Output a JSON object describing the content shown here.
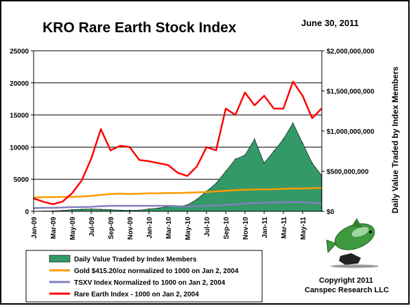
{
  "chart_data": {
    "type": "line",
    "title": "KRO Rare Earth Stock Index",
    "date": "June 30, 2011",
    "ylabel_right": "Daily Value Traded by Index Members",
    "ylim_left": [
      0,
      25000
    ],
    "ylim_right": [
      0,
      2000000000
    ],
    "y_ticks_left": [
      "0",
      "5000",
      "10000",
      "15000",
      "20000",
      "25000"
    ],
    "y_ticks_right": [
      "$0",
      "$500,000,000",
      "$1,000,000,000",
      "$1,500,000,000",
      "$2,000,000,000"
    ],
    "x_ticks": [
      "Jan-09",
      "Mar-09",
      "May-09",
      "Jul-09",
      "Sep-09",
      "Nov-09",
      "Jan-10",
      "Mar-10",
      "May-10",
      "Jul-10",
      "Sep-10",
      "Nov-10",
      "Jan-11",
      "Mar-11",
      "May-11"
    ],
    "grid": true,
    "legend_position": "bottom-left",
    "x_months": [
      0,
      1,
      2,
      3,
      4,
      5,
      6,
      7,
      8,
      9,
      10,
      11,
      12,
      13,
      14,
      15,
      16,
      17,
      18,
      19,
      20,
      21,
      22,
      23,
      24,
      25,
      26,
      27,
      28,
      29,
      29.97
    ],
    "series": [
      {
        "name": "Rare Earth Index - 1000 on Jan 2, 2004",
        "axis": "left",
        "color": "#ff0000",
        "values": [
          2000,
          1500,
          1100,
          1500,
          2800,
          4800,
          8200,
          12800,
          9500,
          10200,
          10000,
          8000,
          7800,
          7500,
          7200,
          6000,
          5500,
          7000,
          10000,
          9500,
          16000,
          15000,
          18500,
          16500,
          18000,
          16000,
          16000,
          20200,
          18000,
          14500,
          16000
        ]
      },
      {
        "name": "Gold $415.20/oz normalized to 1000 on Jan 2, 2004",
        "axis": "left",
        "color": "#ff9900",
        "values": [
          2150,
          2200,
          2200,
          2250,
          2250,
          2300,
          2400,
          2550,
          2700,
          2750,
          2700,
          2750,
          2800,
          2800,
          2850,
          2850,
          2900,
          2950,
          3000,
          3100,
          3200,
          3300,
          3350,
          3400,
          3400,
          3450,
          3500,
          3550,
          3550,
          3600,
          3650
        ]
      },
      {
        "name": "TSXV Index Normalized to 1000 on Jan 2, 2004",
        "axis": "left",
        "color": "#7f7fbf",
        "values": [
          500,
          550,
          550,
          600,
          650,
          650,
          700,
          800,
          850,
          850,
          850,
          850,
          850,
          850,
          850,
          800,
          750,
          800,
          850,
          900,
          1000,
          1100,
          1200,
          1300,
          1350,
          1400,
          1400,
          1450,
          1400,
          1300,
          1200
        ]
      },
      {
        "name": "Daily Value Traded by Index Members",
        "axis": "right",
        "color": "#339966",
        "values": [
          2000000,
          3000000,
          5000000,
          10000000,
          20000000,
          25000000,
          30000000,
          25000000,
          20000000,
          15000000,
          12000000,
          15000000,
          30000000,
          40000000,
          60000000,
          60000000,
          80000000,
          150000000,
          250000000,
          350000000,
          500000000,
          650000000,
          700000000,
          900000000,
          600000000,
          750000000,
          900000000,
          1100000000,
          850000000,
          600000000,
          450000000
        ]
      }
    ]
  },
  "legend": [
    {
      "label": "Daily Value Traded by Index Members",
      "color": "#339966",
      "kind": "box"
    },
    {
      "label": "Gold $415.20/oz normalized to 1000 on Jan 2, 2004",
      "color": "#ff9900",
      "kind": "line"
    },
    {
      "label": "TSXV Index Normalized to 1000 on Jan 2, 2004",
      "color": "#7f7fbf",
      "kind": "line"
    },
    {
      "label": "Rare Earth Index - 1000 on Jan 2, 2004",
      "color": "#ff0000",
      "kind": "line"
    }
  ],
  "credit": {
    "line1": "Copyright 2011",
    "line2": "Canspec Research LLC"
  },
  "logo": {
    "icon": "green-fish-logo"
  }
}
